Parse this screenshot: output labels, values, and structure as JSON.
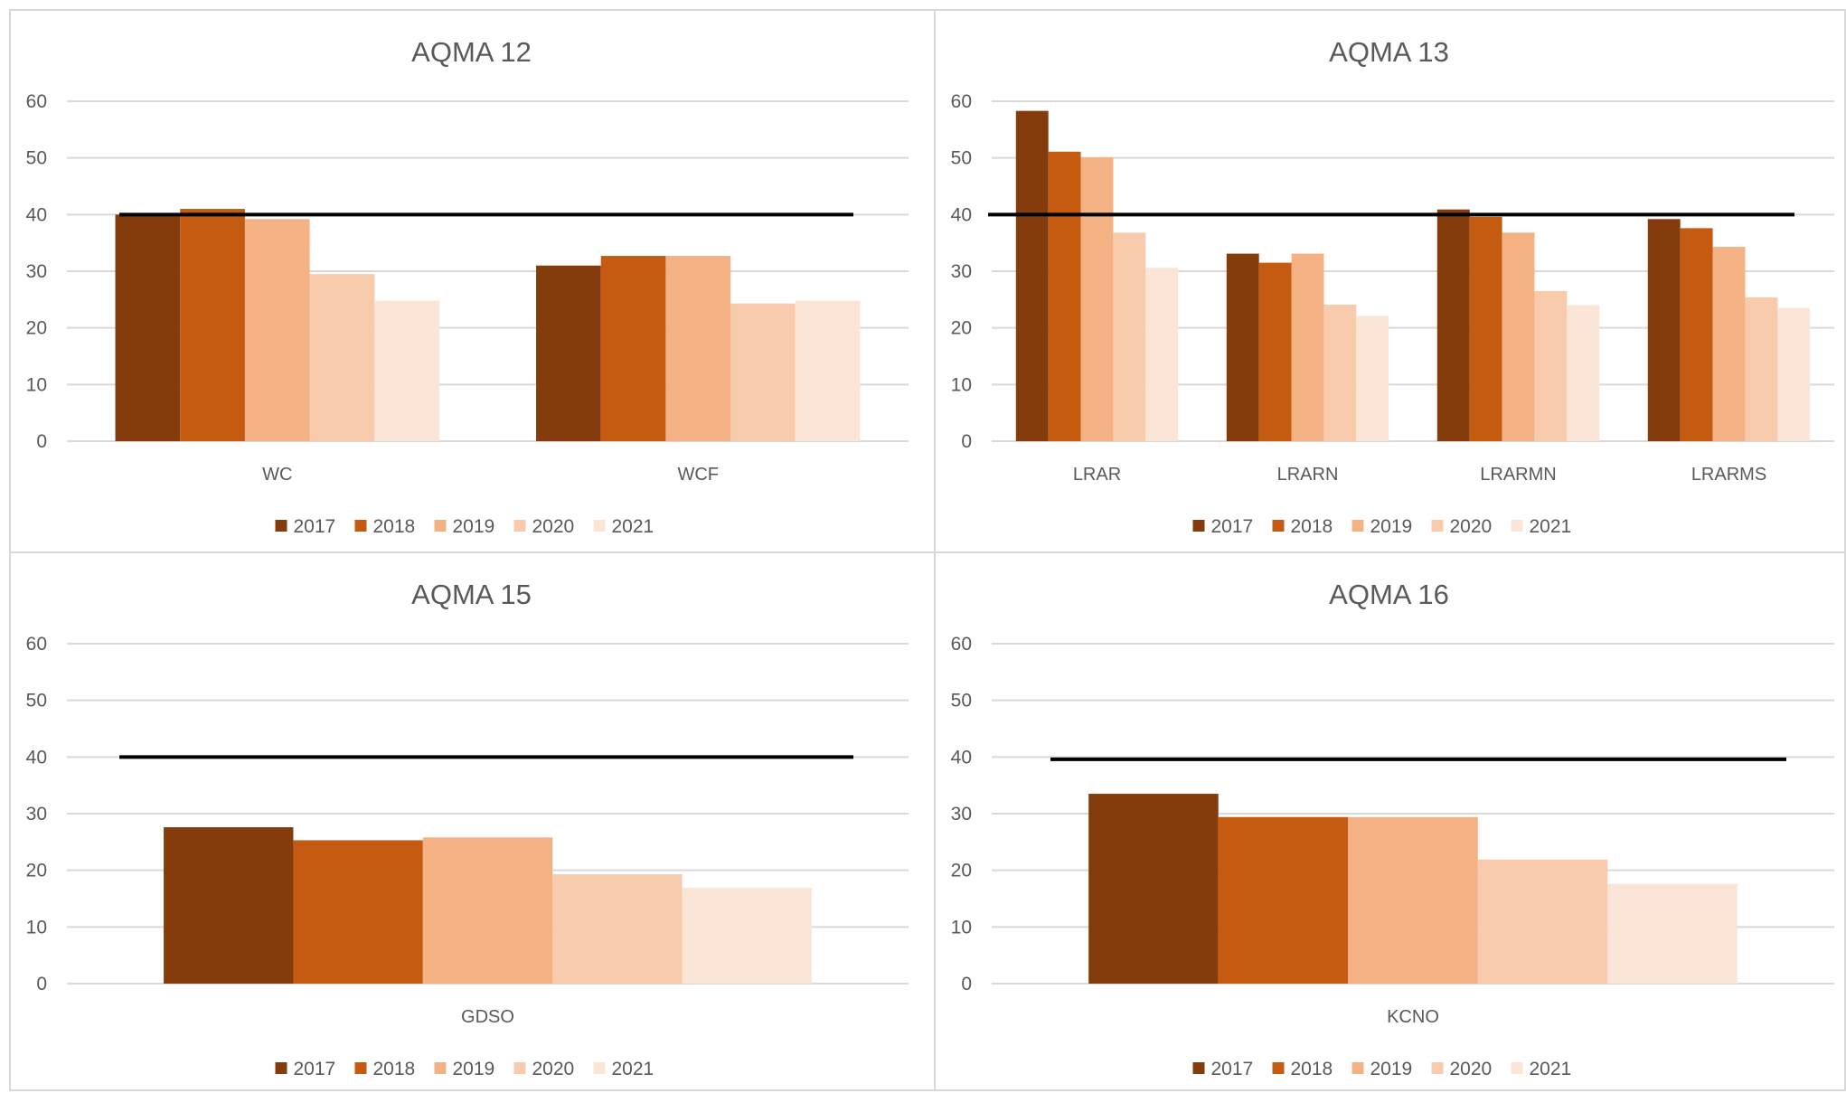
{
  "legend_colors": [
    "#843c0c",
    "#c55a11",
    "#f4b183",
    "#f8cbad",
    "#fbe5d6"
  ],
  "reference_color": "#000000",
  "chart_data": [
    {
      "type": "bar",
      "title": "AQMA 12",
      "categories": [
        "WC",
        "WCF"
      ],
      "yticks": [
        "0",
        "10",
        "20",
        "30",
        "40",
        "50",
        "60"
      ],
      "ylim": [
        0,
        60
      ],
      "grid": true,
      "legend_position": "bottom",
      "reference_line": 40,
      "series": [
        {
          "name": "2017",
          "values": [
            40.0,
            31.0
          ]
        },
        {
          "name": "2018",
          "values": [
            41.0,
            32.7
          ]
        },
        {
          "name": "2019",
          "values": [
            39.2,
            32.7
          ]
        },
        {
          "name": "2020",
          "values": [
            29.5,
            24.3
          ]
        },
        {
          "name": "2021",
          "values": [
            24.8,
            24.8
          ]
        }
      ]
    },
    {
      "type": "bar",
      "title": "AQMA 13",
      "categories": [
        "LRAR",
        "LRARN",
        "LRARMN",
        "LRARMS"
      ],
      "yticks": [
        "0",
        "10",
        "20",
        "30",
        "40",
        "50",
        "60"
      ],
      "ylim": [
        0,
        60
      ],
      "grid": true,
      "legend_position": "bottom",
      "reference_line": 40,
      "series": [
        {
          "name": "2017",
          "values": [
            58.3,
            33.1,
            40.9,
            39.2
          ]
        },
        {
          "name": "2018",
          "values": [
            51.1,
            31.5,
            39.6,
            37.6
          ]
        },
        {
          "name": "2019",
          "values": [
            50.1,
            33.1,
            36.8,
            34.3
          ]
        },
        {
          "name": "2020",
          "values": [
            36.8,
            24.1,
            26.5,
            25.4
          ]
        },
        {
          "name": "2021",
          "values": [
            30.6,
            22.1,
            24.0,
            23.5
          ]
        }
      ]
    },
    {
      "type": "bar",
      "title": "AQMA 15",
      "categories": [
        "GDSO"
      ],
      "yticks": [
        "0",
        "10",
        "20",
        "30",
        "40",
        "50",
        "60"
      ],
      "ylim": [
        0,
        60
      ],
      "grid": true,
      "legend_position": "bottom",
      "reference_line": 40,
      "series": [
        {
          "name": "2017",
          "values": [
            27.6
          ]
        },
        {
          "name": "2018",
          "values": [
            25.3
          ]
        },
        {
          "name": "2019",
          "values": [
            25.8
          ]
        },
        {
          "name": "2020",
          "values": [
            19.3
          ]
        },
        {
          "name": "2021",
          "values": [
            16.9
          ]
        }
      ]
    },
    {
      "type": "bar",
      "title": "AQMA 16",
      "categories": [
        "KCNO"
      ],
      "yticks": [
        "0",
        "10",
        "20",
        "30",
        "40",
        "50",
        "60"
      ],
      "ylim": [
        0,
        60
      ],
      "grid": true,
      "legend_position": "bottom",
      "reference_line": 39.6,
      "series": [
        {
          "name": "2017",
          "values": [
            33.5
          ]
        },
        {
          "name": "2018",
          "values": [
            29.4
          ]
        },
        {
          "name": "2019",
          "values": [
            29.4
          ]
        },
        {
          "name": "2020",
          "values": [
            21.9
          ]
        },
        {
          "name": "2021",
          "values": [
            17.6
          ]
        }
      ]
    }
  ]
}
